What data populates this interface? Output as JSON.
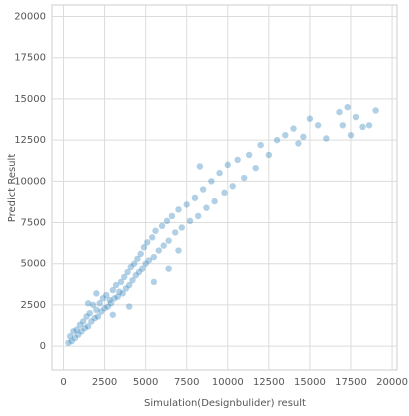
{
  "chart_data": {
    "type": "scatter",
    "xlabel": "Simulation(Designbulider) result",
    "ylabel": "Predict Result",
    "color": "#1f77b4",
    "grid": true,
    "xlim": [
      -700,
      20300
    ],
    "ylim": [
      -1450,
      20700
    ],
    "xticks": [
      0,
      2500,
      5000,
      7500,
      10000,
      12500,
      15000,
      17500,
      20000
    ],
    "yticks": [
      0,
      2500,
      5000,
      7500,
      10000,
      12500,
      15000,
      17500,
      20000
    ],
    "x": [
      300,
      400,
      500,
      600,
      700,
      800,
      900,
      1000,
      1100,
      1200,
      1300,
      1400,
      1500,
      1600,
      1700,
      1800,
      1900,
      2000,
      2100,
      2200,
      2300,
      2400,
      2500,
      2600,
      2700,
      2800,
      2900,
      3000,
      3100,
      3200,
      3300,
      3400,
      3500,
      3600,
      3700,
      3800,
      3900,
      4000,
      4100,
      4200,
      4300,
      4400,
      4500,
      4600,
      4700,
      4800,
      4900,
      5000,
      5100,
      5200,
      5400,
      5500,
      5600,
      5800,
      6000,
      6100,
      6300,
      6400,
      6600,
      6800,
      7000,
      7200,
      7500,
      7700,
      8000,
      8200,
      8500,
      8700,
      9000,
      9200,
      9500,
      9800,
      10000,
      10300,
      10600,
      11000,
      11300,
      11700,
      12000,
      12500,
      13000,
      13500,
      14000,
      14300,
      14600,
      15000,
      15500,
      16000,
      16800,
      17000,
      17300,
      17500,
      17800,
      18200,
      18600,
      19000,
      4000,
      5500,
      1500,
      3000,
      2000,
      7000,
      8300,
      6400
    ],
    "y": [
      200,
      600,
      300,
      900,
      500,
      1000,
      700,
      1300,
      900,
      1500,
      1100,
      1800,
      1200,
      2000,
      1500,
      2500,
      1700,
      2200,
      1800,
      2600,
      2100,
      2900,
      2300,
      3100,
      2400,
      2800,
      2600,
      3400,
      2900,
      3700,
      3000,
      3300,
      3900,
      3200,
      4200,
      3500,
      4500,
      3700,
      4800,
      4000,
      5000,
      4300,
      5300,
      4500,
      5600,
      4700,
      6000,
      5000,
      6300,
      5200,
      6600,
      5400,
      7000,
      5800,
      7300,
      6100,
      7600,
      6400,
      7900,
      6900,
      8300,
      7200,
      8600,
      7600,
      9000,
      7900,
      9500,
      8400,
      10000,
      8800,
      10500,
      9300,
      11000,
      9700,
      11300,
      10200,
      11600,
      10800,
      12200,
      11600,
      12500,
      12800,
      13200,
      12300,
      12700,
      13800,
      13400,
      12600,
      14200,
      13400,
      14500,
      12800,
      13900,
      13300,
      13400,
      14300,
      2400,
      3900,
      2600,
      1900,
      3200,
      5800,
      10900,
      4700
    ]
  }
}
